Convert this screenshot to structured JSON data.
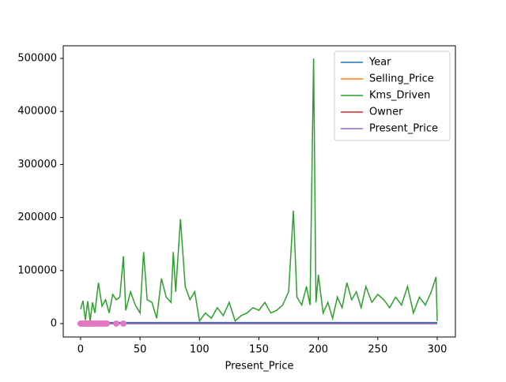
{
  "chart_data": {
    "type": "line",
    "xlabel": "Present_Price",
    "xlim": [
      -14.6,
      315.3
    ],
    "ylim": [
      -25300,
      523800
    ],
    "xticks": [
      0,
      50,
      100,
      150,
      200,
      250,
      300
    ],
    "yticks": [
      0,
      100000,
      200000,
      300000,
      400000,
      500000
    ],
    "legend": "upper right",
    "series": [
      {
        "name": "Year",
        "color": "#1f77b4",
        "x": [
          0,
          300
        ],
        "values": [
          2014,
          2014
        ]
      },
      {
        "name": "Selling_Price",
        "color": "#ff7f0e",
        "x": [
          0,
          300
        ],
        "values": [
          5,
          5
        ]
      },
      {
        "name": "Kms_Driven",
        "color": "#2ca02c",
        "x": [
          0,
          2,
          4,
          6,
          8,
          10,
          12,
          15,
          18,
          21,
          24,
          27,
          30,
          33,
          36,
          38,
          42,
          46,
          50,
          53,
          56,
          60,
          64,
          68,
          72,
          76,
          78,
          80,
          84,
          88,
          92,
          96,
          100,
          105,
          110,
          115,
          120,
          125,
          130,
          135,
          140,
          145,
          150,
          155,
          160,
          165,
          170,
          175,
          179,
          182,
          186,
          190,
          193,
          196,
          198,
          200,
          204,
          208,
          212,
          216,
          220,
          224,
          228,
          232,
          236,
          240,
          245,
          250,
          255,
          260,
          265,
          270,
          275,
          280,
          285,
          290,
          295,
          299,
          300
        ],
        "values": [
          27000,
          43000,
          6900,
          42000,
          5000,
          40000,
          20000,
          77000,
          33000,
          45000,
          20000,
          55000,
          45000,
          50000,
          127000,
          25000,
          60000,
          35000,
          20000,
          135000,
          45000,
          40000,
          10000,
          85000,
          50000,
          40000,
          135000,
          60000,
          197000,
          70000,
          45000,
          60000,
          5000,
          20000,
          10000,
          30000,
          15000,
          40000,
          5000,
          15000,
          20000,
          30000,
          25000,
          40000,
          20000,
          25000,
          35000,
          60000,
          213000,
          50000,
          35000,
          70000,
          35000,
          500000,
          40000,
          92000,
          20000,
          40000,
          10000,
          50000,
          30000,
          77000,
          45000,
          60000,
          30000,
          70000,
          40000,
          55000,
          45000,
          30000,
          50000,
          35000,
          70000,
          20000,
          50000,
          35000,
          60000,
          88000,
          5000
        ]
      },
      {
        "name": "Owner",
        "color": "#d62728",
        "x": [
          0,
          300
        ],
        "values": [
          0,
          0
        ]
      },
      {
        "name": "Present_Price",
        "color": "#9467bd",
        "x": [
          0,
          300
        ],
        "values": [
          7,
          7
        ]
      }
    ],
    "scatter": {
      "color": "#e377c2",
      "x": [
        0,
        1,
        2,
        3,
        4,
        5,
        6,
        7,
        8,
        9,
        10,
        11,
        13,
        14,
        16,
        18,
        20,
        22,
        30,
        36
      ],
      "y": [
        0,
        1,
        2,
        3,
        4,
        5,
        6,
        7,
        8,
        9,
        10,
        11,
        13,
        14,
        16,
        18,
        20,
        22,
        30,
        36
      ]
    }
  }
}
